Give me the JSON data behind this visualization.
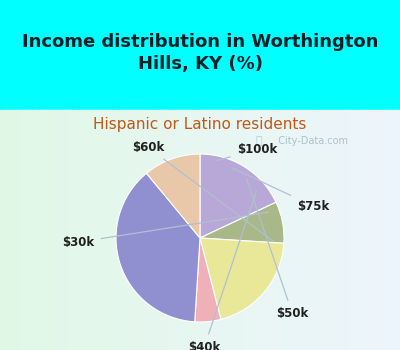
{
  "title": "Income distribution in Worthington\nHills, KY (%)",
  "subtitle": "Hispanic or Latino residents",
  "labels": [
    "$100k",
    "$75k",
    "$50k",
    "$40k",
    "$30k",
    "$60k"
  ],
  "sizes": [
    18,
    8,
    20,
    5,
    38,
    11
  ],
  "colors": [
    "#b8a8d8",
    "#a8b888",
    "#e8e898",
    "#f0b0b8",
    "#9090d0",
    "#e8c8a8"
  ],
  "title_color": "#102028",
  "subtitle_color": "#c05818",
  "cyan_bg": "#00ffff",
  "chart_bg": "#e8f5f0",
  "watermark": "City-Data.com",
  "label_fontsize": 8.5,
  "title_fontsize": 13,
  "subtitle_fontsize": 11,
  "startangle": 90,
  "label_color": "#202020"
}
